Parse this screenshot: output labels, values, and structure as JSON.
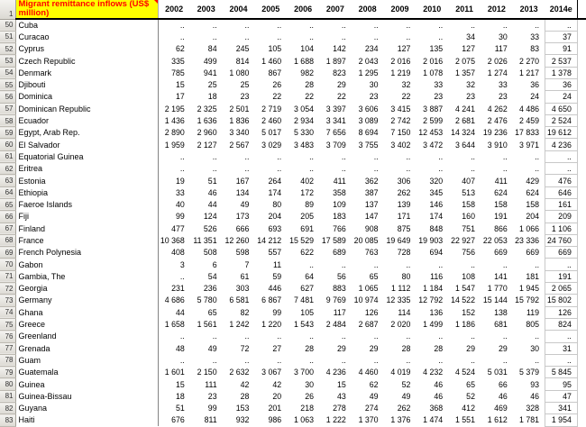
{
  "table": {
    "title": "Migrant remittance inflows (US$ million)",
    "corner_row_number": "1",
    "missing_marker": "..",
    "columns": [
      "2002",
      "2003",
      "2004",
      "2005",
      "2006",
      "2007",
      "2008",
      "2009",
      "2010",
      "2011",
      "2012",
      "2013",
      "2014e"
    ],
    "rows": [
      {
        "n": "50",
        "country": "Cuba",
        "values": [
          "..",
          "..",
          "..",
          "..",
          "..",
          "..",
          "..",
          "..",
          "..",
          "..",
          "..",
          "..",
          ".."
        ]
      },
      {
        "n": "51",
        "country": "Curacao",
        "values": [
          "..",
          "..",
          "..",
          "..",
          "..",
          "..",
          "..",
          "..",
          "..",
          "34",
          "30",
          "33",
          "37"
        ]
      },
      {
        "n": "52",
        "country": "Cyprus",
        "values": [
          "62",
          "84",
          "245",
          "105",
          "104",
          "142",
          "234",
          "127",
          "135",
          "127",
          "117",
          "83",
          "91"
        ]
      },
      {
        "n": "53",
        "country": "Czech Republic",
        "values": [
          "335",
          "499",
          "814",
          "1 460",
          "1 688",
          "1 897",
          "2 043",
          "2 016",
          "2 016",
          "2 075",
          "2 026",
          "2 270",
          "2 537"
        ]
      },
      {
        "n": "54",
        "country": "Denmark",
        "values": [
          "785",
          "941",
          "1 080",
          "867",
          "982",
          "823",
          "1 295",
          "1 219",
          "1 078",
          "1 357",
          "1 274",
          "1 217",
          "1 378"
        ]
      },
      {
        "n": "55",
        "country": "Djibouti",
        "values": [
          "15",
          "25",
          "25",
          "26",
          "28",
          "29",
          "30",
          "32",
          "33",
          "32",
          "33",
          "36",
          "36"
        ]
      },
      {
        "n": "56",
        "country": "Dominica",
        "values": [
          "17",
          "18",
          "23",
          "22",
          "22",
          "22",
          "23",
          "22",
          "23",
          "23",
          "23",
          "24",
          "24"
        ]
      },
      {
        "n": "57",
        "country": "Dominican Republic",
        "values": [
          "2 195",
          "2 325",
          "2 501",
          "2 719",
          "3 054",
          "3 397",
          "3 606",
          "3 415",
          "3 887",
          "4 241",
          "4 262",
          "4 486",
          "4 650"
        ]
      },
      {
        "n": "58",
        "country": "Ecuador",
        "values": [
          "1 436",
          "1 636",
          "1 836",
          "2 460",
          "2 934",
          "3 341",
          "3 089",
          "2 742",
          "2 599",
          "2 681",
          "2 476",
          "2 459",
          "2 524"
        ]
      },
      {
        "n": "59",
        "country": "Egypt, Arab Rep.",
        "values": [
          "2 890",
          "2 960",
          "3 340",
          "5 017",
          "5 330",
          "7 656",
          "8 694",
          "7 150",
          "12 453",
          "14 324",
          "19 236",
          "17 833",
          "19 612"
        ]
      },
      {
        "n": "60",
        "country": "El Salvador",
        "values": [
          "1 959",
          "2 127",
          "2 567",
          "3 029",
          "3 483",
          "3 709",
          "3 755",
          "3 402",
          "3 472",
          "3 644",
          "3 910",
          "3 971",
          "4 236"
        ]
      },
      {
        "n": "61",
        "country": "Equatorial Guinea",
        "values": [
          "..",
          "..",
          "..",
          "..",
          "..",
          "..",
          "..",
          "..",
          "..",
          "..",
          "..",
          "..",
          ".."
        ]
      },
      {
        "n": "62",
        "country": "Eritrea",
        "values": [
          "..",
          "..",
          "..",
          "..",
          "..",
          "..",
          "..",
          "..",
          "..",
          "..",
          "..",
          "..",
          ".."
        ]
      },
      {
        "n": "63",
        "country": "Estonia",
        "values": [
          "19",
          "51",
          "167",
          "264",
          "402",
          "411",
          "362",
          "306",
          "320",
          "407",
          "411",
          "429",
          "476"
        ]
      },
      {
        "n": "64",
        "country": "Ethiopia",
        "values": [
          "33",
          "46",
          "134",
          "174",
          "172",
          "358",
          "387",
          "262",
          "345",
          "513",
          "624",
          "624",
          "646"
        ]
      },
      {
        "n": "65",
        "country": "Faeroe Islands",
        "values": [
          "40",
          "44",
          "49",
          "80",
          "89",
          "109",
          "137",
          "139",
          "146",
          "158",
          "158",
          "158",
          "161"
        ]
      },
      {
        "n": "66",
        "country": "Fiji",
        "values": [
          "99",
          "124",
          "173",
          "204",
          "205",
          "183",
          "147",
          "171",
          "174",
          "160",
          "191",
          "204",
          "209"
        ]
      },
      {
        "n": "67",
        "country": "Finland",
        "values": [
          "477",
          "526",
          "666",
          "693",
          "691",
          "766",
          "908",
          "875",
          "848",
          "751",
          "866",
          "1 066",
          "1 106"
        ]
      },
      {
        "n": "68",
        "country": "France",
        "values": [
          "10 368",
          "11 351",
          "12 260",
          "14 212",
          "15 529",
          "17 589",
          "20 085",
          "19 649",
          "19 903",
          "22 927",
          "22 053",
          "23 336",
          "24 760"
        ]
      },
      {
        "n": "69",
        "country": "French Polynesia",
        "values": [
          "408",
          "508",
          "598",
          "557",
          "622",
          "689",
          "763",
          "728",
          "694",
          "756",
          "669",
          "669",
          "669"
        ]
      },
      {
        "n": "70",
        "country": "Gabon",
        "values": [
          "3",
          "6",
          "7",
          "11",
          "..",
          "..",
          "..",
          "..",
          "..",
          "..",
          "..",
          "..",
          ".."
        ]
      },
      {
        "n": "71",
        "country": "Gambia, The",
        "values": [
          "..",
          "54",
          "61",
          "59",
          "64",
          "56",
          "65",
          "80",
          "116",
          "108",
          "141",
          "181",
          "191"
        ]
      },
      {
        "n": "72",
        "country": "Georgia",
        "values": [
          "231",
          "236",
          "303",
          "446",
          "627",
          "883",
          "1 065",
          "1 112",
          "1 184",
          "1 547",
          "1 770",
          "1 945",
          "2 065"
        ]
      },
      {
        "n": "73",
        "country": "Germany",
        "values": [
          "4 686",
          "5 780",
          "6 581",
          "6 867",
          "7 481",
          "9 769",
          "10 974",
          "12 335",
          "12 792",
          "14 522",
          "15 144",
          "15 792",
          "15 802"
        ]
      },
      {
        "n": "74",
        "country": "Ghana",
        "values": [
          "44",
          "65",
          "82",
          "99",
          "105",
          "117",
          "126",
          "114",
          "136",
          "152",
          "138",
          "119",
          "126"
        ]
      },
      {
        "n": "75",
        "country": "Greece",
        "values": [
          "1 658",
          "1 561",
          "1 242",
          "1 220",
          "1 543",
          "2 484",
          "2 687",
          "2 020",
          "1 499",
          "1 186",
          "681",
          "805",
          "824"
        ]
      },
      {
        "n": "76",
        "country": "Greenland",
        "values": [
          "..",
          "..",
          "..",
          "..",
          "..",
          "..",
          "..",
          "..",
          "..",
          "..",
          "..",
          "..",
          ".."
        ]
      },
      {
        "n": "77",
        "country": "Grenada",
        "values": [
          "48",
          "49",
          "72",
          "27",
          "28",
          "29",
          "29",
          "28",
          "28",
          "29",
          "29",
          "30",
          "31"
        ]
      },
      {
        "n": "78",
        "country": "Guam",
        "values": [
          "..",
          "..",
          "..",
          "..",
          "..",
          "..",
          "..",
          "..",
          "..",
          "..",
          "..",
          "..",
          ".."
        ]
      },
      {
        "n": "79",
        "country": "Guatemala",
        "values": [
          "1 601",
          "2 150",
          "2 632",
          "3 067",
          "3 700",
          "4 236",
          "4 460",
          "4 019",
          "4 232",
          "4 524",
          "5 031",
          "5 379",
          "5 845"
        ]
      },
      {
        "n": "80",
        "country": "Guinea",
        "values": [
          "15",
          "111",
          "42",
          "42",
          "30",
          "15",
          "62",
          "52",
          "46",
          "65",
          "66",
          "93",
          "95"
        ]
      },
      {
        "n": "81",
        "country": "Guinea-Bissau",
        "values": [
          "18",
          "23",
          "28",
          "20",
          "26",
          "43",
          "49",
          "49",
          "46",
          "52",
          "46",
          "46",
          "47"
        ]
      },
      {
        "n": "82",
        "country": "Guyana",
        "values": [
          "51",
          "99",
          "153",
          "201",
          "218",
          "278",
          "274",
          "262",
          "368",
          "412",
          "469",
          "328",
          "341"
        ]
      },
      {
        "n": "83",
        "country": "Haiti",
        "values": [
          "676",
          "811",
          "932",
          "986",
          "1 063",
          "1 222",
          "1 370",
          "1 376",
          "1 474",
          "1 551",
          "1 612",
          "1 781",
          "1 954"
        ]
      }
    ]
  },
  "colors": {
    "title_bg": "#FFFF00",
    "title_text": "#FF0000",
    "comment_marker": "#FF0000",
    "header_underline": "#000000",
    "forecast_cell_border": "#C8C8C8",
    "country_divider": "#848484",
    "row_header_bg": "#E8E6E0"
  }
}
